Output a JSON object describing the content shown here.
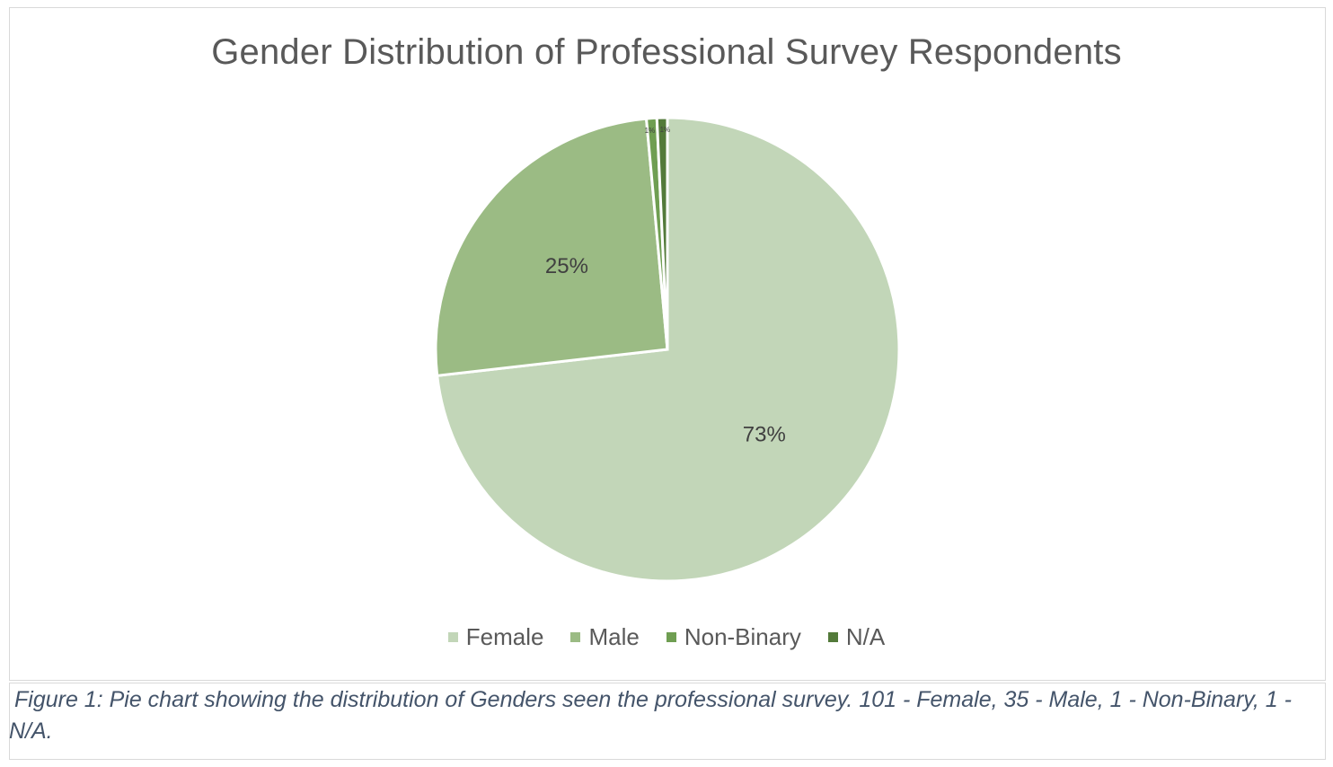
{
  "chart_data": {
    "type": "pie",
    "title": "Gender Distribution of Professional Survey Respondents",
    "categories": [
      "Female",
      "Male",
      "Non-Binary",
      "N/A"
    ],
    "values": [
      101,
      35,
      1,
      1
    ],
    "data_labels": [
      "73%",
      "25%",
      "1%",
      "1%"
    ],
    "colors": [
      "#c2d6b8",
      "#9bbb84",
      "#6f9e52",
      "#537a3a"
    ],
    "legend_position": "bottom"
  },
  "caption": "Figure 1: Pie chart showing the distribution of Genders seen the professional survey. 101 - Female, 35 - Male, 1 - Non-Binary, 1 - N/A."
}
